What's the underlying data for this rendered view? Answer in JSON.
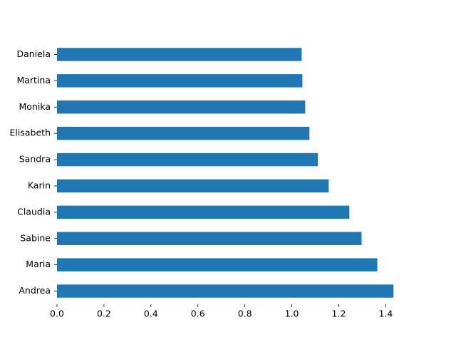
{
  "chart_data": {
    "type": "barh",
    "categories": [
      "Andrea",
      "Maria",
      "Sabine",
      "Claudia",
      "Karin",
      "Sandra",
      "Elisabeth",
      "Monika",
      "Martina",
      "Daniela"
    ],
    "values": [
      1.433,
      1.364,
      1.297,
      1.245,
      1.157,
      1.111,
      1.075,
      1.057,
      1.045,
      1.042
    ],
    "color": "#1f77b4",
    "xlim": [
      0,
      1.505
    ],
    "xticks": [
      {
        "value": 0,
        "label": "0.0"
      },
      {
        "value": 0.2,
        "label": "0.2"
      },
      {
        "value": 0.4,
        "label": "0.4"
      },
      {
        "value": 0.6,
        "label": "0.6"
      },
      {
        "value": 0.8,
        "label": "0.8"
      },
      {
        "value": 1.0,
        "label": "1.0"
      },
      {
        "value": 1.2,
        "label": "1.2"
      },
      {
        "value": 1.4,
        "label": "1.4"
      }
    ],
    "grid": false
  }
}
